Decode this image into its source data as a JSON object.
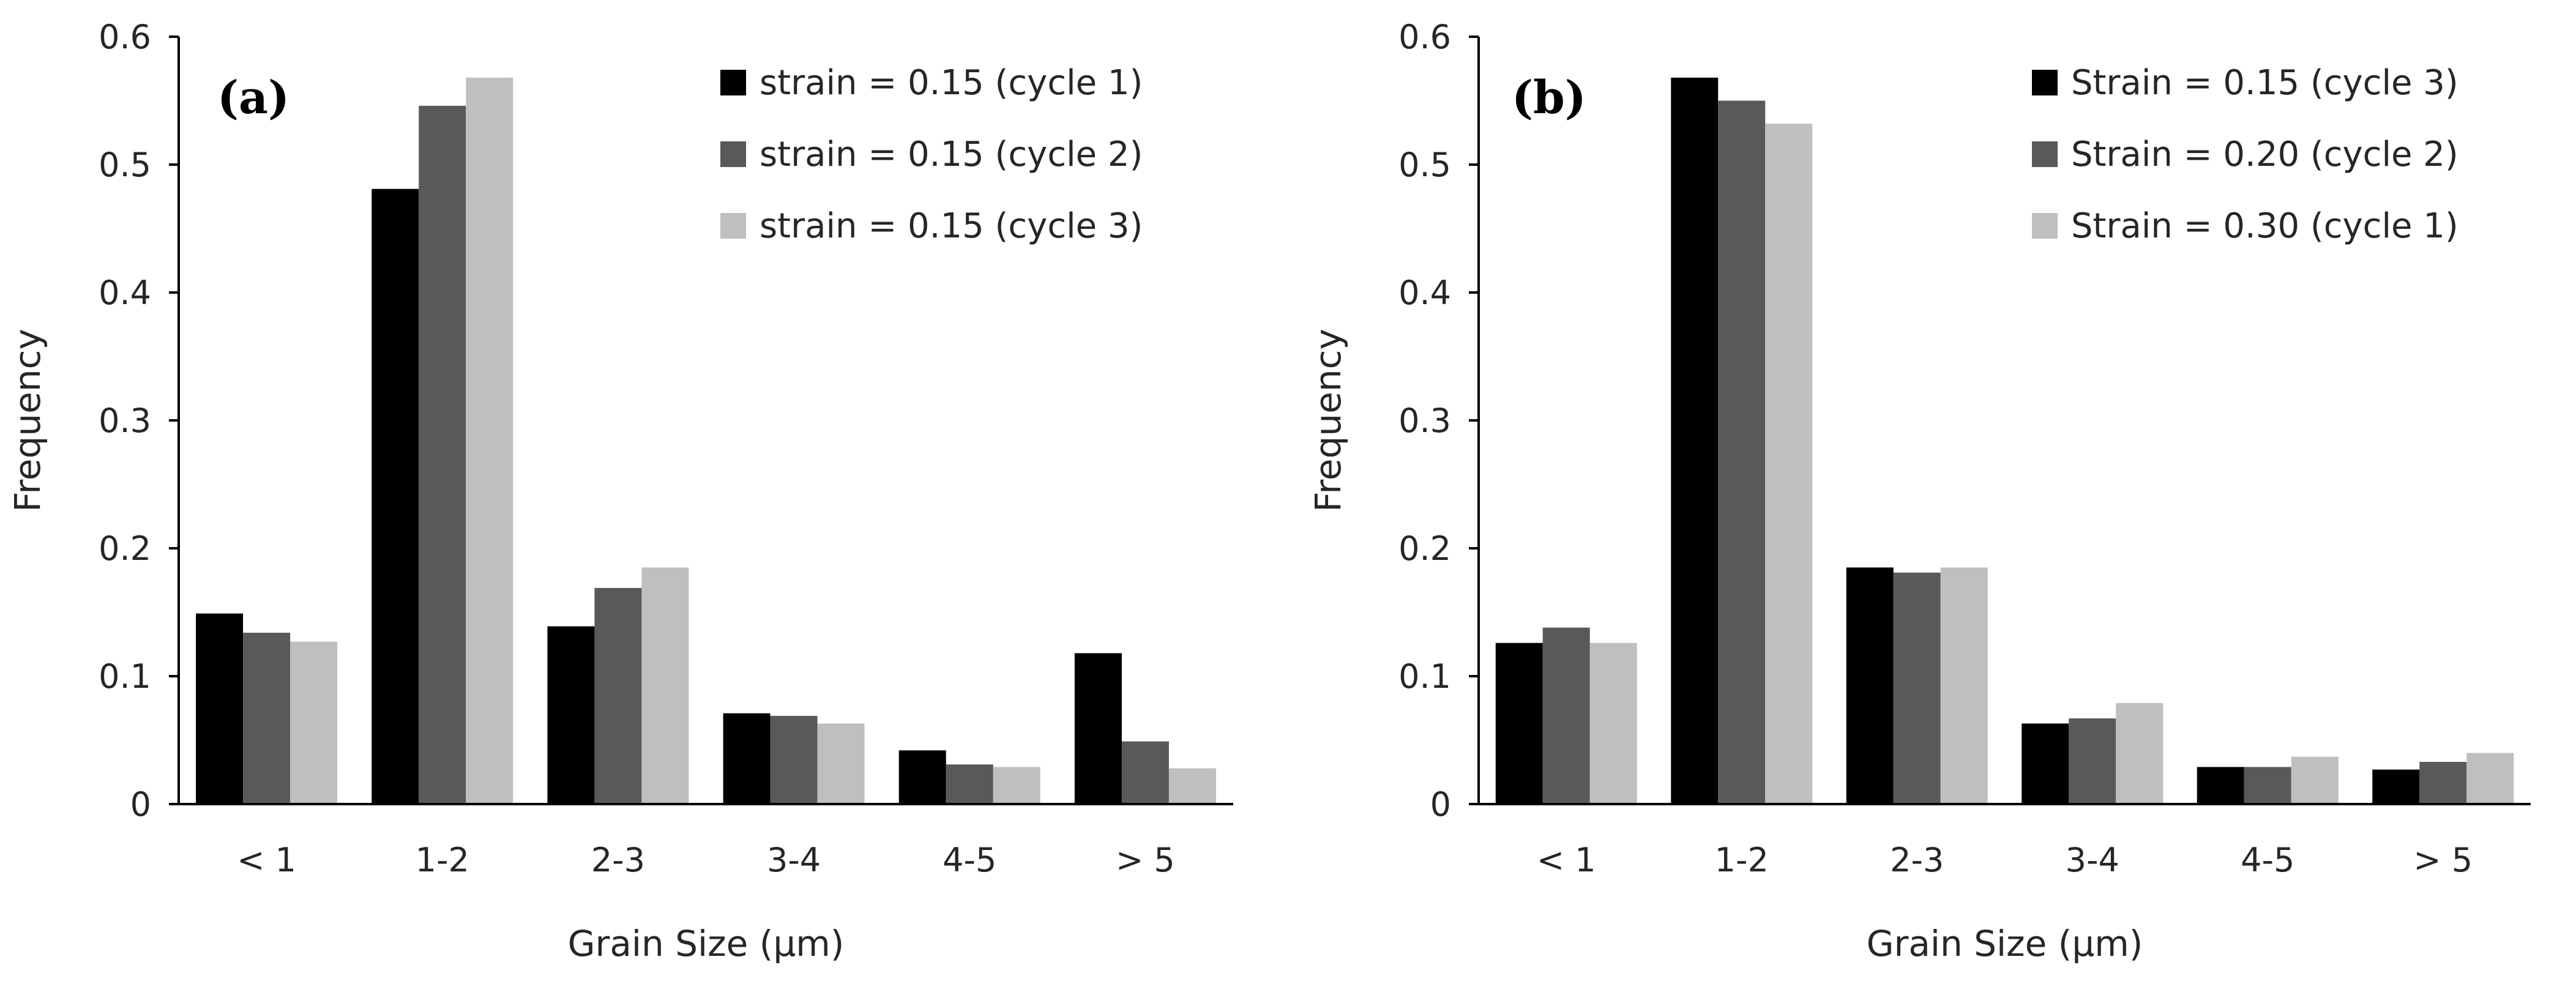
{
  "colors": {
    "series": [
      "#000000",
      "#595959",
      "#bfbfbf"
    ],
    "axis": "#000000",
    "text": "#262626"
  },
  "chart_data": [
    {
      "type": "bar",
      "panel_label": "(a)",
      "categories": [
        "< 1",
        "1-2",
        "2-3",
        "3-4",
        "4-5",
        "> 5"
      ],
      "series": [
        {
          "name": "strain = 0.15 (cycle 1)",
          "values": [
            0.149,
            0.481,
            0.139,
            0.071,
            0.042,
            0.118
          ]
        },
        {
          "name": "strain = 0.15 (cycle 2)",
          "values": [
            0.134,
            0.546,
            0.169,
            0.069,
            0.031,
            0.049
          ]
        },
        {
          "name": "strain = 0.15 (cycle 3)",
          "values": [
            0.127,
            0.568,
            0.185,
            0.063,
            0.029,
            0.028
          ]
        }
      ],
      "xlabel": "Grain Size (μm)",
      "ylabel": "Frequency",
      "ylim": [
        0,
        0.6
      ],
      "yticks": [
        "0",
        "0.1",
        "0.2",
        "0.3",
        "0.4",
        "0.5",
        "0.6"
      ],
      "grid": false,
      "legend_position": "top-right"
    },
    {
      "type": "bar",
      "panel_label": "(b)",
      "categories": [
        "< 1",
        "1-2",
        "2-3",
        "3-4",
        "4-5",
        "> 5"
      ],
      "series": [
        {
          "name": "Strain = 0.15 (cycle 3)",
          "values": [
            0.126,
            0.568,
            0.185,
            0.063,
            0.029,
            0.027
          ]
        },
        {
          "name": "Strain = 0.20 (cycle 2)",
          "values": [
            0.138,
            0.55,
            0.181,
            0.067,
            0.029,
            0.033
          ]
        },
        {
          "name": "Strain = 0.30 (cycle 1)",
          "values": [
            0.126,
            0.532,
            0.185,
            0.079,
            0.037,
            0.04
          ]
        }
      ],
      "xlabel": "Grain Size (μm)",
      "ylabel": "Frequency",
      "ylim": [
        0,
        0.6
      ],
      "yticks": [
        "0",
        "0.1",
        "0.2",
        "0.3",
        "0.4",
        "0.5",
        "0.6"
      ],
      "grid": false,
      "legend_position": "top-right"
    }
  ]
}
